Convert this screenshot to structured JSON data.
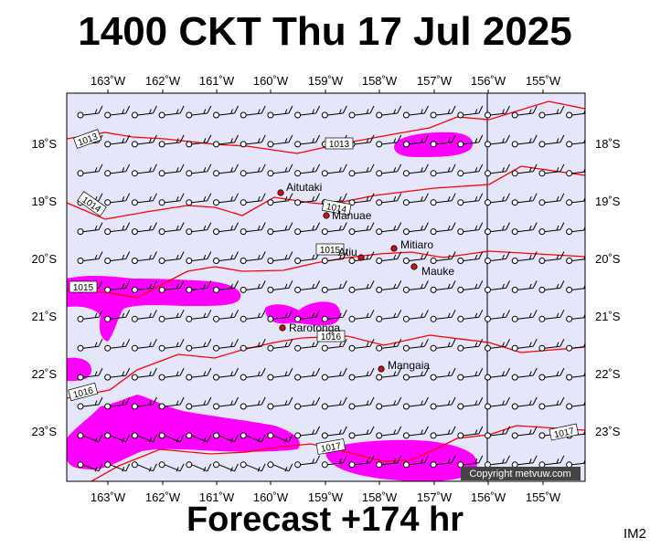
{
  "title": "1400 CKT Thu 17 Jul 2025",
  "subtitle": "Forecast +174 hr",
  "corner_tag": "IM2",
  "copyright": "Copyright metvuw.com",
  "map": {
    "background_color": "#e6e6fa",
    "rain_color": "#ff00ff",
    "isobar_color": "#ff0000",
    "lon_labels": [
      "163˚W",
      "162˚W",
      "161˚W",
      "160˚W",
      "159˚W",
      "158˚W",
      "157˚W",
      "156˚W",
      "155˚W"
    ],
    "lat_labels": [
      "18˚S",
      "19˚S",
      "20˚S",
      "21˚S",
      "22˚S",
      "23˚S"
    ],
    "isobar_labels": [
      "1013",
      "1013",
      "1014",
      "1014",
      "1015",
      "1015",
      "1016",
      "1016",
      "1017",
      "1017"
    ],
    "places": [
      "Aitutaki",
      "Manuae",
      "Atiu",
      "Mitiaro",
      "Mauke",
      "Rarotonga",
      "Mangaia"
    ]
  }
}
